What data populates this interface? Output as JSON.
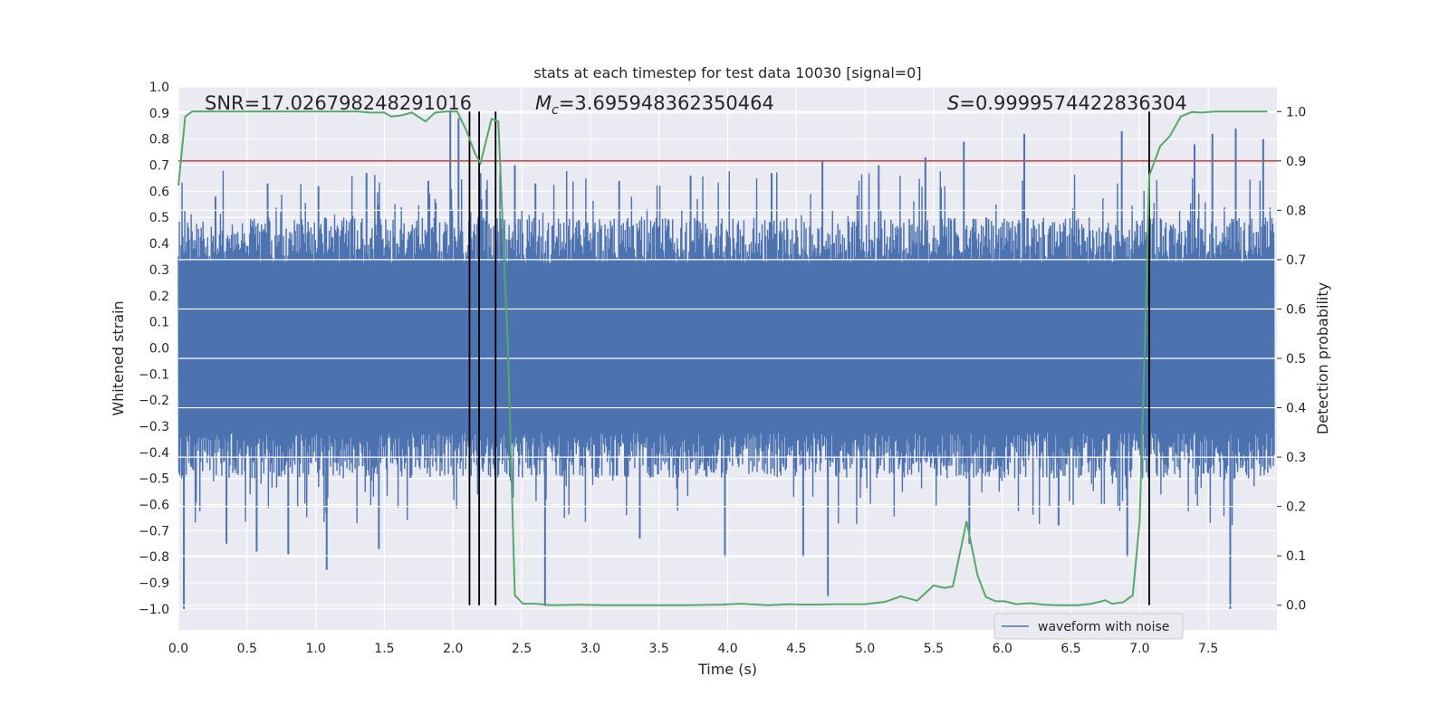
{
  "chart_data": {
    "type": "line",
    "title": "stats at each timestep for test data 10030 [signal=0]",
    "xlabel": "Time (s)",
    "ylabel": "Whitened strain",
    "y2label": "Detection probability",
    "xlim": [
      0.0,
      8.0
    ],
    "ylim": [
      -1.08,
      1.0
    ],
    "y2lim": [
      -0.05,
      1.05
    ],
    "xticks": [
      "0.0",
      "0.5",
      "1.0",
      "1.5",
      "2.0",
      "2.5",
      "3.0",
      "3.5",
      "4.0",
      "4.5",
      "5.0",
      "5.5",
      "6.0",
      "6.5",
      "7.0",
      "7.5"
    ],
    "yticks": [
      "1.0",
      "0.9",
      "0.8",
      "0.7",
      "0.6",
      "0.5",
      "0.4",
      "0.3",
      "0.2",
      "0.1",
      "0.0",
      "−0.1",
      "−0.2",
      "−0.3",
      "−0.4",
      "−0.5",
      "−0.6",
      "−0.7",
      "−0.8",
      "−0.9",
      "−1.0"
    ],
    "y2ticks": [
      "1.0",
      "0.9",
      "0.8",
      "0.7",
      "0.6",
      "0.5",
      "0.4",
      "0.3",
      "0.2",
      "0.1",
      "0.0"
    ],
    "grid": true,
    "legend": {
      "position": "lower-right",
      "entries": [
        "waveform with noise"
      ]
    },
    "annotations": {
      "snr": "SNR=17.026798248291016",
      "mc_prefix": "M",
      "mc_sub": "c",
      "mc_value": "=3.695948362350464",
      "s_prefix": "S",
      "s_value": "=0.9999574422836304"
    },
    "threshold_y2": 0.9,
    "vlines_x": [
      2.12,
      2.19,
      2.31,
      7.07
    ],
    "waveform": {
      "name": "waveform with noise",
      "t_start": 0.0,
      "t_end": 7.98,
      "core_amplitude": 0.5,
      "spikes": [
        {
          "x": 0.04,
          "y": -1.0
        },
        {
          "x": 0.27,
          "y": 0.58
        },
        {
          "x": 0.35,
          "y": -0.75
        },
        {
          "x": 0.57,
          "y": -0.78
        },
        {
          "x": 0.65,
          "y": 0.63
        },
        {
          "x": 0.8,
          "y": -0.79
        },
        {
          "x": 1.02,
          "y": 0.62
        },
        {
          "x": 1.08,
          "y": -0.85
        },
        {
          "x": 1.37,
          "y": 0.67
        },
        {
          "x": 1.46,
          "y": -0.77
        },
        {
          "x": 1.82,
          "y": 0.64
        },
        {
          "x": 1.98,
          "y": 0.91
        },
        {
          "x": 2.04,
          "y": 0.88
        },
        {
          "x": 2.2,
          "y": 0.67
        },
        {
          "x": 2.45,
          "y": 0.7
        },
        {
          "x": 2.6,
          "y": 0.63
        },
        {
          "x": 2.67,
          "y": -0.99
        },
        {
          "x": 3.21,
          "y": 0.64
        },
        {
          "x": 3.36,
          "y": -0.73
        },
        {
          "x": 3.73,
          "y": 0.66
        },
        {
          "x": 3.98,
          "y": -0.8
        },
        {
          "x": 4.32,
          "y": 0.67
        },
        {
          "x": 4.55,
          "y": -0.8
        },
        {
          "x": 4.69,
          "y": 0.72
        },
        {
          "x": 4.73,
          "y": -0.95
        },
        {
          "x": 5.1,
          "y": 0.7
        },
        {
          "x": 5.44,
          "y": 0.73
        },
        {
          "x": 5.72,
          "y": 0.79
        },
        {
          "x": 5.76,
          "y": -0.75
        },
        {
          "x": 6.16,
          "y": 0.82
        },
        {
          "x": 6.41,
          "y": -0.68
        },
        {
          "x": 6.87,
          "y": 0.83
        },
        {
          "x": 6.91,
          "y": -0.8
        },
        {
          "x": 7.4,
          "y": 0.78
        },
        {
          "x": 7.53,
          "y": 0.82
        },
        {
          "x": 7.66,
          "y": -1.0
        },
        {
          "x": 7.7,
          "y": 0.84
        },
        {
          "x": 7.9,
          "y": 0.8
        }
      ]
    },
    "probability": {
      "name": "Detection probability",
      "x": [
        0.0,
        0.05,
        0.1,
        0.2,
        0.3,
        0.4,
        0.5,
        0.6,
        0.7,
        0.8,
        0.9,
        1.0,
        1.1,
        1.2,
        1.3,
        1.4,
        1.5,
        1.55,
        1.62,
        1.7,
        1.8,
        1.87,
        1.95,
        2.03,
        2.1,
        2.16,
        2.2,
        2.28,
        2.33,
        2.4,
        2.45,
        2.51,
        2.6,
        2.72,
        2.9,
        3.1,
        3.4,
        3.7,
        3.95,
        4.1,
        4.3,
        4.45,
        4.6,
        4.8,
        5.0,
        5.15,
        5.26,
        5.38,
        5.5,
        5.58,
        5.64,
        5.74,
        5.82,
        5.88,
        5.95,
        6.02,
        6.1,
        6.2,
        6.3,
        6.4,
        6.55,
        6.65,
        6.75,
        6.8,
        6.88,
        6.95,
        7.0,
        7.04,
        7.07,
        7.15,
        7.22,
        7.3,
        7.38,
        7.45,
        7.55,
        7.7,
        7.85,
        7.93
      ],
      "y": [
        0.85,
        0.99,
        1.0,
        1.0,
        1.0,
        1.0,
        1.0,
        1.0,
        1.0,
        1.0,
        1.0,
        1.0,
        1.0,
        1.0,
        1.0,
        0.998,
        0.998,
        0.99,
        0.992,
        0.998,
        0.98,
        0.998,
        1.0,
        1.0,
        0.96,
        0.915,
        0.895,
        0.985,
        0.98,
        0.52,
        0.02,
        0.003,
        0.003,
        0.0,
        0.001,
        0.0,
        0.0,
        0.0,
        0.001,
        0.003,
        0.0,
        0.002,
        0.001,
        0.002,
        0.002,
        0.007,
        0.018,
        0.009,
        0.04,
        0.035,
        0.038,
        0.17,
        0.06,
        0.017,
        0.008,
        0.008,
        0.002,
        0.004,
        0.001,
        0.0,
        0.0,
        0.003,
        0.01,
        0.003,
        0.006,
        0.02,
        0.17,
        0.55,
        0.87,
        0.93,
        0.95,
        0.99,
        0.999,
        0.998,
        1.0,
        1.0,
        1.0,
        1.0
      ]
    }
  }
}
